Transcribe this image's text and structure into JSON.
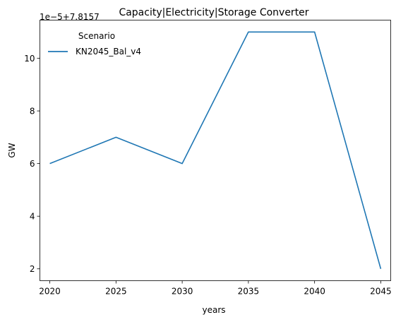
{
  "chart_data": {
    "type": "line",
    "title": "Capacity|Electricity|Storage Converter",
    "xlabel": "years",
    "ylabel": "GW",
    "offset_label": "1e−5+7.8157",
    "x": [
      2020,
      2025,
      2030,
      2035,
      2040,
      2045
    ],
    "xticks": [
      "2020",
      "2025",
      "2030",
      "2035",
      "2040",
      "2045"
    ],
    "xlim": [
      2019.25,
      2045.75
    ],
    "yticks_scaled": [
      2,
      4,
      6,
      8,
      10
    ],
    "ytick_labels": [
      "2",
      "4",
      "6",
      "8",
      "10"
    ],
    "ylim_scaled": [
      1.55,
      11.45
    ],
    "series": [
      {
        "name": "KN2045_Bal_v4",
        "color": "#1f77b4",
        "values_scaled": [
          6,
          7,
          6,
          11,
          11,
          2
        ],
        "values": [
          7.81576,
          7.81577,
          7.81576,
          7.81581,
          7.81581,
          7.81572
        ]
      }
    ],
    "legend": {
      "title": "Scenario",
      "placement": "top-left",
      "frame": false
    },
    "grid": false
  }
}
